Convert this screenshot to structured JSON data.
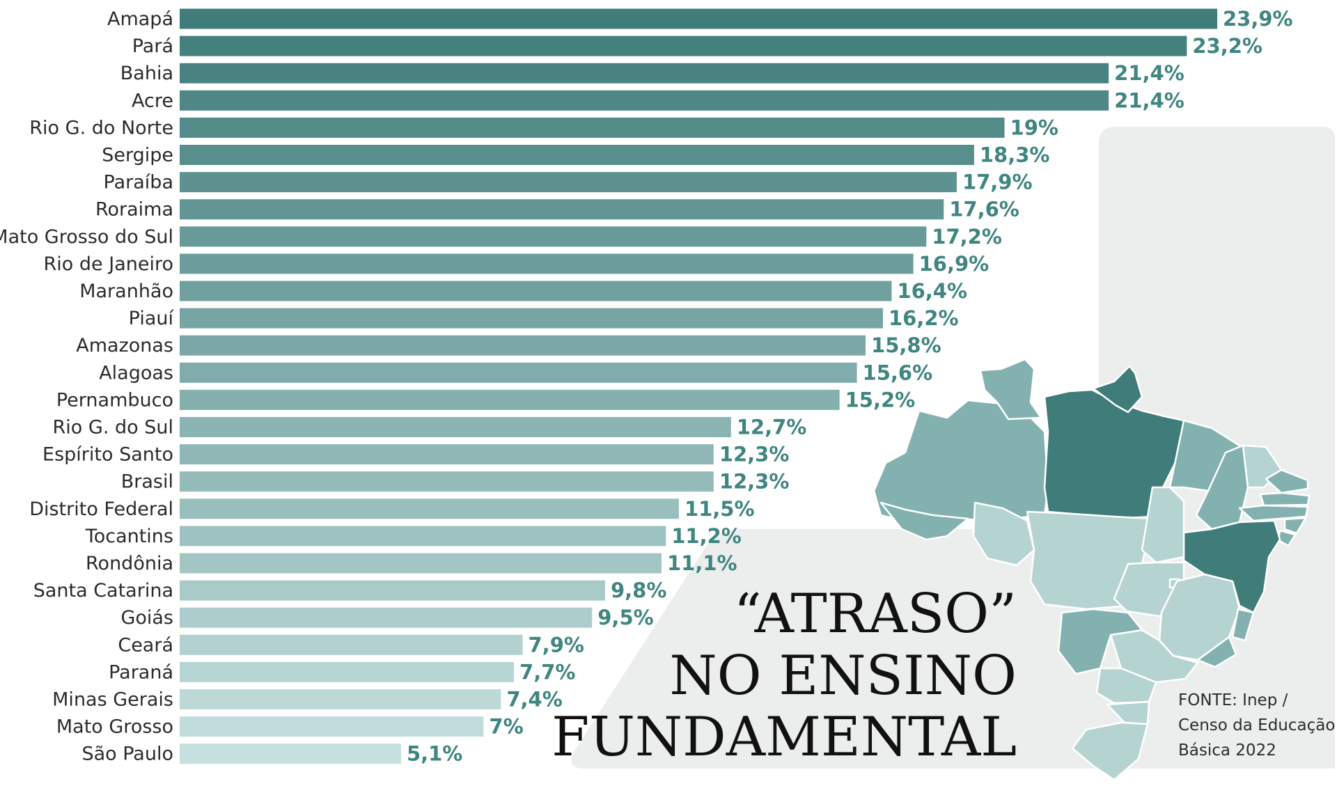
{
  "title_lines": [
    "“ATRASO”",
    "NO ENSINO",
    "FUNDAMENTAL"
  ],
  "source_lines": [
    "FONTE: Inep /",
    "Censo da Educação",
    "Básica 2022"
  ],
  "colors": {
    "panel": "#eceeee",
    "value_text": "#3f8580",
    "bar_darkest": "#3f7c7a",
    "bar_lightest": "#c6e0df",
    "map_dark": "#3f7c7a",
    "map_mid": "#82b1af",
    "map_light": "#b5d3d1",
    "map_stroke": "#ffffff"
  },
  "map": {
    "type": "choropleth",
    "region": "Brazil",
    "shading": "darker teal = higher percentage"
  },
  "chart_data": {
    "type": "bar",
    "orientation": "horizontal",
    "unit": "%",
    "xlim": [
      0,
      23.9
    ],
    "grid": false,
    "legend": "none",
    "categories": [
      "Amapá",
      "Pará",
      "Bahia",
      "Acre",
      "Rio G. do Norte",
      "Sergipe",
      "Paraíba",
      "Roraima",
      "Mato Grosso do Sul",
      "Rio de Janeiro",
      "Maranhão",
      "Piauí",
      "Amazonas",
      "Alagoas",
      "Pernambuco",
      "Rio G. do Sul",
      "Espírito Santo",
      "Brasil",
      "Distrito Federal",
      "Tocantins",
      "Rondônia",
      "Santa Catarina",
      "Goiás",
      "Ceará",
      "Paraná",
      "Minas Gerais",
      "Mato Grosso",
      "São Paulo"
    ],
    "values": [
      23.9,
      23.2,
      21.4,
      21.4,
      19,
      18.3,
      17.9,
      17.6,
      17.2,
      16.9,
      16.4,
      16.2,
      15.8,
      15.6,
      15.2,
      12.7,
      12.3,
      12.3,
      11.5,
      11.2,
      11.1,
      9.8,
      9.5,
      7.9,
      7.7,
      7.4,
      7,
      5.1
    ],
    "value_labels": [
      "23,9%",
      "23,2%",
      "21,4%",
      "21,4%",
      "19%",
      "18,3%",
      "17,9%",
      "17,6%",
      "17,2%",
      "16,9%",
      "16,4%",
      "16,2%",
      "15,8%",
      "15,6%",
      "15,2%",
      "12,7%",
      "12,3%",
      "12,3%",
      "11,5%",
      "11,2%",
      "11,1%",
      "9,8%",
      "9,5%",
      "7,9%",
      "7,7%",
      "7,4%",
      "7%",
      "5,1%"
    ]
  }
}
